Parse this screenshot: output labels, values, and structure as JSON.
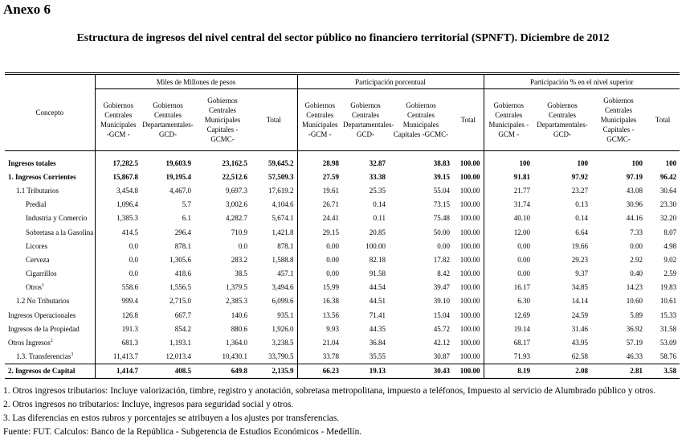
{
  "title": "Anexo 6",
  "subtitle": "Estructura de ingresos del nivel central  del sector público no financiero territorial (SPNFT). Diciembre de 2012",
  "table": {
    "concept_header": "Concepto",
    "groups": [
      {
        "title": "Miles de Millones de pesos",
        "columns": [
          [
            "Gobiernos",
            "Centrales",
            "Municipales",
            "-GCM -"
          ],
          [
            "Gobiernos",
            "Centrales",
            "Departamentales-",
            "GCD-"
          ],
          [
            "Gobiernos",
            "Centrales",
            "Municipales",
            "Capitales  -GCMC-"
          ],
          [
            "Total"
          ]
        ]
      },
      {
        "title": "Participación porcentual",
        "columns": [
          [
            "Gobiernos",
            "Centrales",
            "Municipales",
            "-GCM -"
          ],
          [
            "Gobiernos",
            "Centrales",
            "Departamentales-",
            "GCD-"
          ],
          [
            "Gobiernos",
            "Centrales",
            "Municipales",
            "Capitales  -GCMC-"
          ],
          [
            "Total"
          ]
        ]
      },
      {
        "title": "Participación % en el nivel superior",
        "columns": [
          [
            "Gobiernos",
            "Centrales",
            "Municipales -",
            "GCM -"
          ],
          [
            "Gobiernos",
            "Centrales",
            "Departamentales-",
            "GCD-"
          ],
          [
            "Gobiernos",
            "Centrales",
            "Municipales",
            "Capitales  -",
            "GCMC-"
          ],
          [
            "Total"
          ]
        ]
      }
    ],
    "rows": [
      {
        "label": "Ingresos totales",
        "values": [
          "17,282.5",
          "19,603.9",
          "23,162.5",
          "59,645.2",
          "28.98",
          "32.87",
          "38.83",
          "100.00",
          "100",
          "100",
          "100",
          "100"
        ]
      },
      {
        "label": "1.  Ingresos Corrientes",
        "values": [
          "15,867.8",
          "19,195.4",
          "22,512.6",
          "57,509.3",
          "27.59",
          "33.38",
          "39.15",
          "100.00",
          "91.81",
          "97.92",
          "97.19",
          "96.42"
        ]
      },
      {
        "label": "1.1 Tributarios",
        "values": [
          "3,454.8",
          "4,467.0",
          "9,697.3",
          "17,619.2",
          "19.61",
          "25.35",
          "55.04",
          "100.00",
          "21.77",
          "23.27",
          "43.08",
          "30.64"
        ]
      },
      {
        "label": "Predial",
        "values": [
          "1,096.4",
          "5.7",
          "3,002.6",
          "4,104.6",
          "26.71",
          "0.14",
          "73.15",
          "100.00",
          "31.74",
          "0.13",
          "30.96",
          "23.30"
        ]
      },
      {
        "label": "Industria y Comercio",
        "values": [
          "1,385.3",
          "6.1",
          "4,282.7",
          "5,674.1",
          "24.41",
          "0.11",
          "75.48",
          "100.00",
          "40.10",
          "0.14",
          "44.16",
          "32.20"
        ]
      },
      {
        "label": "Sobretasa a la Gasolina",
        "values": [
          "414.5",
          "296.4",
          "710.9",
          "1,421.8",
          "29.15",
          "20.85",
          "50.00",
          "100.00",
          "12.00",
          "6.64",
          "7.33",
          "8.07"
        ]
      },
      {
        "label": "Licores",
        "values": [
          "0.0",
          "878.1",
          "0.0",
          "878.1",
          "0.00",
          "100.00",
          "0.00",
          "100.00",
          "0.00",
          "19.66",
          "0.00",
          "4.98"
        ]
      },
      {
        "label": "Cerveza",
        "values": [
          "0.0",
          "1,305.6",
          "283.2",
          "1,588.8",
          "0.00",
          "82.18",
          "17.82",
          "100.00",
          "0.00",
          "29.23",
          "2.92",
          "9.02"
        ]
      },
      {
        "label": "Cigarrillos",
        "values": [
          "0.0",
          "418.6",
          "38.5",
          "457.1",
          "0.00",
          "91.58",
          "8.42",
          "100.00",
          "0.00",
          "9.37",
          "0.40",
          "2.59"
        ]
      },
      {
        "label": "Otros",
        "sup": "1",
        "values": [
          "558.6",
          "1,556.5",
          "1,379.5",
          "3,494.6",
          "15.99",
          "44.54",
          "39.47",
          "100.00",
          "16.17",
          "34.85",
          "14.23",
          "19.83"
        ]
      },
      {
        "label": "1.2 No Tributarios",
        "values": [
          "999.4",
          "2,715.0",
          "2,385.3",
          "6,099.6",
          "16.38",
          "44.51",
          "39.10",
          "100.00",
          "6.30",
          "14.14",
          "10.60",
          "10.61"
        ]
      },
      {
        "label": "Ingresos Operacionales",
        "values": [
          "126.8",
          "667.7",
          "140.6",
          "935.1",
          "13.56",
          "71.41",
          "15.04",
          "100.00",
          "12.69",
          "24.59",
          "5.89",
          "15.33"
        ]
      },
      {
        "label": "Ingresos de la Propiedad",
        "values": [
          "191.3",
          "854.2",
          "880.6",
          "1,926.0",
          "9.93",
          "44.35",
          "45.72",
          "100.00",
          "19.14",
          "31.46",
          "36.92",
          "31.58"
        ]
      },
      {
        "label": "Otros Ingresos",
        "sup": "2",
        "values": [
          "681.3",
          "1,193.1",
          "1,364.0",
          "3,238.5",
          "21.04",
          "36.84",
          "42.12",
          "100.00",
          "68.17",
          "43.95",
          "57.19",
          "53.09"
        ]
      },
      {
        "label": "1.3.  Transferencias",
        "sup": "3",
        "values": [
          "11,413.7",
          "12,013.4",
          "10,430.1",
          "33,790.5",
          "33.78",
          "35.55",
          "30.87",
          "100.00",
          "71.93",
          "62.58",
          "46.33",
          "58.76"
        ]
      },
      {
        "label": "2.  Ingresos de Capital",
        "values": [
          "1,414.7",
          "408.5",
          "649.8",
          "2,135.9",
          "66.23",
          "19.13",
          "30.43",
          "100.00",
          "8.19",
          "2.08",
          "2.81",
          "3.58"
        ]
      }
    ]
  },
  "notes": [
    "1. Otros ingresos tributarios: Incluye valorización,  timbre, registro y anotación, sobretasa metropolitana, impuesto a teléfonos, Impuesto al servicio de Alumbrado público y otros.",
    "2. Otros ingresos no tributarios: Incluye, ingresos para seguridad social y otros.",
    "3. Las diferencias en estos  rubros y porcentajes  se atribuyen a los ajustes por transferencias.",
    "Fuente: FUT. Calculos: Banco de la República - Subgerencia de Estudios Económicos - Medellín."
  ]
}
